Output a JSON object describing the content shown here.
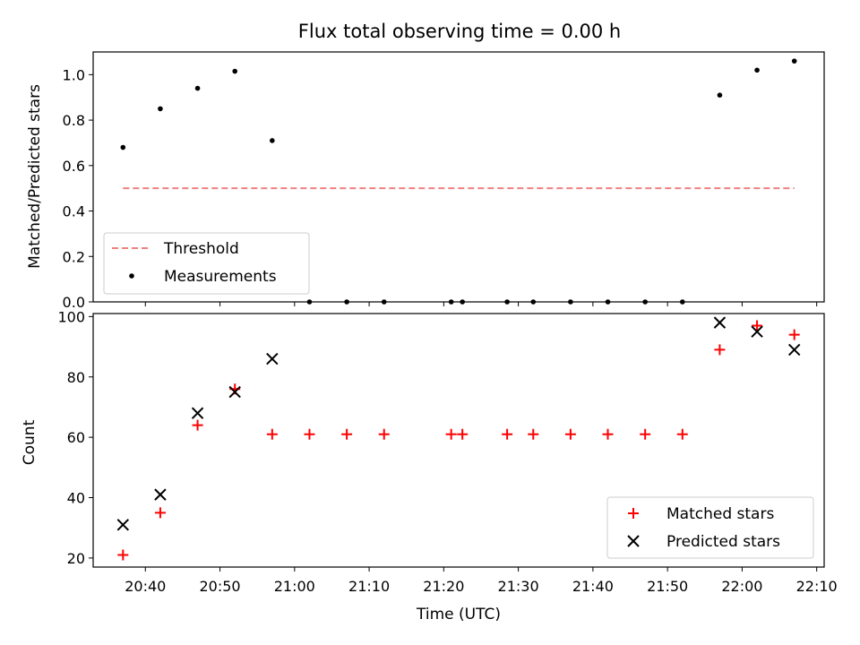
{
  "chart_data": [
    {
      "type": "scatter",
      "title": "Flux total observing time = 0.00 h",
      "xlabel": "",
      "ylabel": "Matched/Predicted stars",
      "xlim": [
        "20:33",
        "22:11"
      ],
      "ylim": [
        0,
        1.1
      ],
      "yticks": [
        "0.0",
        "0.2",
        "0.4",
        "0.6",
        "0.8",
        "1.0"
      ],
      "legend": {
        "position": "lower-left",
        "entries": [
          "Threshold",
          "Measurements"
        ]
      },
      "threshold": {
        "name": "Threshold",
        "value": 0.5,
        "x_start": "20:37",
        "x_end": "22:07",
        "color": "#f08080",
        "style": "dashed"
      },
      "series": [
        {
          "name": "Measurements",
          "color": "#000000",
          "marker": "dot",
          "x": [
            "20:37",
            "20:42",
            "20:47",
            "20:52",
            "20:57",
            "21:02",
            "21:07",
            "21:12",
            "21:21",
            "21:22.5",
            "21:28.5",
            "21:32",
            "21:37",
            "21:42",
            "21:47",
            "21:52",
            "21:57",
            "22:02",
            "22:07"
          ],
          "values": [
            0.68,
            0.85,
            0.94,
            1.015,
            0.71,
            0.0,
            0.0,
            0.0,
            0.0,
            0.0,
            0.0,
            0.0,
            0.0,
            0.0,
            0.0,
            0.0,
            0.91,
            1.02,
            1.06
          ]
        }
      ]
    },
    {
      "type": "scatter",
      "title": "",
      "xlabel": "Time (UTC)",
      "ylabel": "Count",
      "xlim": [
        "20:33",
        "22:11"
      ],
      "ylim": [
        17,
        101
      ],
      "yticks": [
        "20",
        "40",
        "60",
        "80",
        "100"
      ],
      "xticks": [
        "20:40",
        "20:50",
        "21:00",
        "21:10",
        "21:20",
        "21:30",
        "21:40",
        "21:50",
        "22:00",
        "22:10"
      ],
      "legend": {
        "position": "lower-right",
        "entries": [
          "Matched stars",
          "Predicted stars"
        ]
      },
      "series": [
        {
          "name": "Matched stars",
          "color": "#ff0000",
          "marker": "plus",
          "x": [
            "20:37",
            "20:42",
            "20:47",
            "20:52",
            "20:57",
            "21:02",
            "21:07",
            "21:12",
            "21:21",
            "21:22.5",
            "21:28.5",
            "21:32",
            "21:37",
            "21:42",
            "21:47",
            "21:52",
            "21:57",
            "22:02",
            "22:07"
          ],
          "values": [
            21,
            35,
            64,
            76,
            61,
            61,
            61,
            61,
            61,
            61,
            61,
            61,
            61,
            61,
            61,
            61,
            89,
            97,
            94
          ]
        },
        {
          "name": "Predicted stars",
          "color": "#000000",
          "marker": "x",
          "x": [
            "20:37",
            "20:42",
            "20:47",
            "20:52",
            "20:57",
            "22:02",
            "22:07",
            "21:57"
          ],
          "values": [
            31,
            41,
            68,
            75,
            86,
            95,
            89,
            98
          ]
        }
      ]
    }
  ]
}
